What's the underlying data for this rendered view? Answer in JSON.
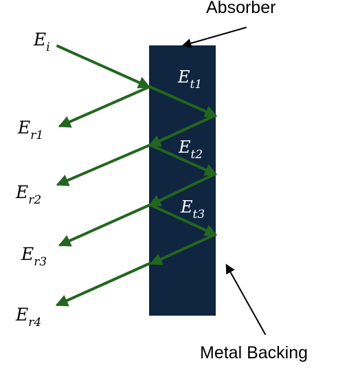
{
  "labels": {
    "absorber": "Absorber",
    "metal_backing": "Metal Backing",
    "incident": {
      "base": "E",
      "sub": "i"
    },
    "transmitted": [
      {
        "base": "E",
        "sub": "t1"
      },
      {
        "base": "E",
        "sub": "t2"
      },
      {
        "base": "E",
        "sub": "t3"
      }
    ],
    "reflected": [
      {
        "base": "E",
        "sub": "r1"
      },
      {
        "base": "E",
        "sub": "r2"
      },
      {
        "base": "E",
        "sub": "r3"
      },
      {
        "base": "E",
        "sub": "r4"
      }
    ]
  },
  "colors": {
    "absorber_fill": "#0f2540",
    "ray": "#23661f",
    "pointer": "#000000"
  }
}
